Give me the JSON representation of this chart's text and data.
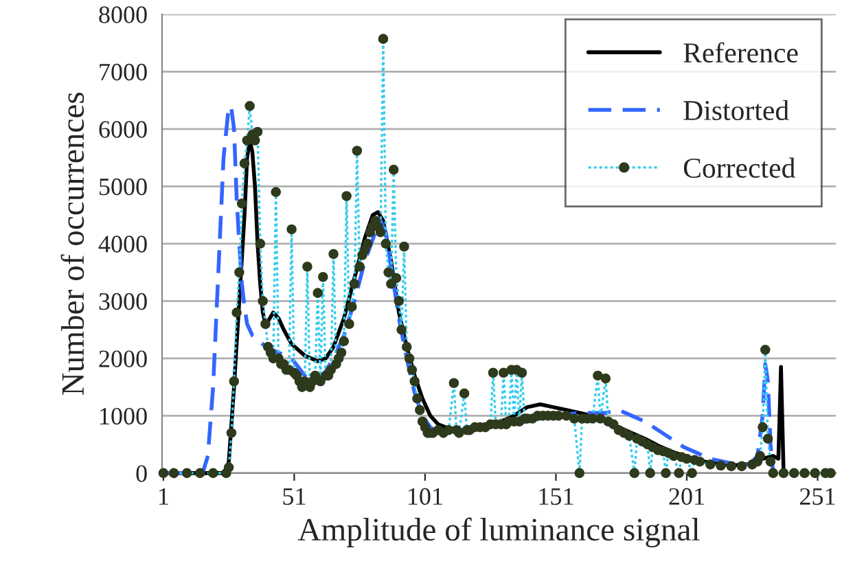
{
  "chart_data": {
    "type": "line",
    "xlabel": "Amplitude of luminance signal",
    "ylabel": "Number of occurrences",
    "xlim": [
      0.5,
      258
    ],
    "xticks": [
      1,
      51,
      101,
      151,
      201,
      251
    ],
    "ylim": [
      0,
      8000
    ],
    "yticks": [
      0,
      1000,
      2000,
      3000,
      4000,
      5000,
      6000,
      7000,
      8000
    ],
    "grid": "y",
    "legend": "top right",
    "series": [
      {
        "name": "Reference",
        "color": "#000000",
        "line_style": "solid",
        "marker": "none",
        "x": [
          1,
          25,
          26,
          28,
          30,
          32,
          33,
          34,
          35,
          36,
          37,
          38,
          39,
          40,
          41,
          43,
          45,
          47,
          50,
          55,
          60,
          63,
          66,
          70,
          74,
          78,
          81,
          83,
          85,
          88,
          91,
          94,
          97,
          100,
          103,
          106,
          110,
          115,
          120,
          125,
          130,
          135,
          140,
          145,
          150,
          155,
          160,
          165,
          170,
          175,
          180,
          185,
          190,
          195,
          200,
          205,
          210,
          215,
          220,
          225,
          230,
          234,
          236,
          237,
          238
        ],
        "values": [
          0,
          0,
          200,
          1500,
          3000,
          4500,
          5500,
          5800,
          5600,
          5000,
          4000,
          3300,
          2800,
          2600,
          2650,
          2800,
          2700,
          2500,
          2250,
          2050,
          1950,
          2000,
          2200,
          2700,
          3400,
          4100,
          4500,
          4550,
          4400,
          3700,
          2800,
          2200,
          1700,
          1300,
          1000,
          850,
          780,
          750,
          780,
          820,
          900,
          1000,
          1150,
          1200,
          1150,
          1100,
          1050,
          1000,
          900,
          800,
          700,
          600,
          480,
          380,
          300,
          230,
          180,
          150,
          140,
          160,
          250,
          300,
          250,
          1850,
          0
        ]
      },
      {
        "name": "Distorted",
        "color": "#3366ff",
        "line_style": "dashed",
        "marker": "none",
        "x": [
          1,
          16,
          18,
          20,
          22,
          24,
          26,
          27,
          28,
          29,
          30,
          31,
          32,
          33,
          35,
          38,
          40,
          45,
          50,
          55,
          58,
          62,
          66,
          70,
          74,
          78,
          82,
          84,
          86,
          88,
          91,
          94,
          97,
          100,
          103,
          106,
          110,
          115,
          120,
          130,
          140,
          150,
          160,
          170,
          175,
          180,
          185,
          190,
          195,
          200,
          205,
          210,
          215,
          220,
          225,
          228,
          230,
          231,
          232,
          233,
          234
        ],
        "values": [
          0,
          0,
          300,
          1500,
          3500,
          5500,
          6400,
          6350,
          6000,
          4800,
          4000,
          3300,
          2900,
          2600,
          2400,
          2300,
          2200,
          2100,
          2000,
          1700,
          1600,
          1700,
          2000,
          2400,
          3000,
          3700,
          4200,
          4400,
          4200,
          3600,
          2700,
          2000,
          1400,
          1000,
          800,
          700,
          750,
          750,
          800,
          850,
          900,
          1000,
          1050,
          1050,
          1100,
          1000,
          900,
          750,
          600,
          450,
          350,
          250,
          200,
          150,
          150,
          300,
          1000,
          1900,
          1600,
          500,
          0
        ]
      },
      {
        "name": "Corrected",
        "color": "#33ccee",
        "line_style": "dotted",
        "marker": "circle",
        "x": [
          1,
          5,
          10,
          15,
          20,
          25,
          26,
          27,
          28,
          29,
          30,
          31,
          32,
          33,
          34,
          35,
          36,
          37,
          38,
          39,
          40,
          41,
          42,
          43,
          44,
          45,
          46,
          47,
          48,
          49,
          50,
          51,
          52,
          53,
          54,
          55,
          56,
          57,
          58,
          59,
          60,
          61,
          62,
          63,
          64,
          65,
          66,
          67,
          68,
          69,
          70,
          71,
          72,
          73,
          74,
          75,
          76,
          77,
          78,
          79,
          80,
          81,
          82,
          83,
          84,
          85,
          86,
          87,
          88,
          89,
          90,
          91,
          92,
          93,
          94,
          95,
          96,
          97,
          98,
          99,
          100,
          101,
          102,
          103,
          104,
          106,
          108,
          110,
          112,
          113,
          114,
          116,
          117,
          118,
          120,
          122,
          124,
          126,
          127,
          128,
          130,
          131,
          132,
          133,
          134,
          135,
          136,
          137,
          138,
          139,
          140,
          142,
          144,
          146,
          148,
          150,
          152,
          155,
          158,
          160,
          161,
          163,
          165,
          167,
          168,
          170,
          171,
          173,
          175,
          177,
          179,
          181,
          182,
          184,
          186,
          187,
          188,
          190,
          192,
          193,
          194,
          196,
          198,
          199,
          201,
          203,
          204,
          206,
          210,
          214,
          218,
          222,
          226,
          228,
          229,
          230,
          231,
          232,
          233,
          234,
          238,
          242,
          246,
          250,
          254,
          256
        ],
        "values": [
          0,
          0,
          0,
          0,
          0,
          0,
          100,
          700,
          1600,
          2800,
          3500,
          4700,
          5400,
          5800,
          6400,
          5900,
          5800,
          5950,
          4000,
          3000,
          2600,
          2200,
          2100,
          2000,
          4900,
          2000,
          1900,
          1900,
          1800,
          1800,
          4250,
          1750,
          1700,
          1600,
          1500,
          1600,
          3600,
          1500,
          1600,
          1700,
          3140,
          1600,
          3420,
          1700,
          1700,
          1800,
          3820,
          1900,
          2000,
          2100,
          2300,
          4830,
          2600,
          2900,
          3300,
          5620,
          3600,
          3800,
          3900,
          4000,
          4200,
          4300,
          4400,
          4300,
          4200,
          7570,
          4000,
          3500,
          3300,
          5290,
          3400,
          3000,
          2500,
          3950,
          2200,
          2000,
          1800,
          1600,
          1300,
          1100,
          900,
          800,
          700,
          700,
          700,
          750,
          700,
          750,
          1570,
          750,
          700,
          1390,
          750,
          750,
          800,
          800,
          800,
          850,
          1750,
          850,
          850,
          1750,
          850,
          900,
          1800,
          900,
          1800,
          900,
          1750,
          950,
          950,
          950,
          1000,
          1000,
          1000,
          1000,
          1000,
          1000,
          950,
          0,
          950,
          950,
          950,
          1700,
          950,
          1650,
          900,
          850,
          750,
          700,
          650,
          0,
          600,
          550,
          500,
          0,
          450,
          400,
          380,
          0,
          350,
          300,
          0,
          280,
          250,
          0,
          230,
          200,
          150,
          130,
          120,
          120,
          150,
          200,
          300,
          800,
          2150,
          600,
          200,
          0,
          0,
          0,
          0,
          0,
          0,
          0
        ]
      }
    ]
  }
}
